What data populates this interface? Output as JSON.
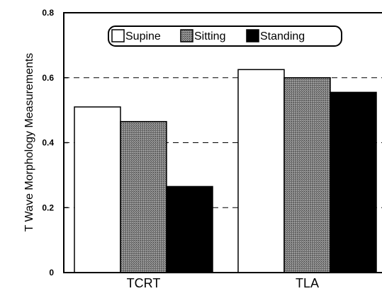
{
  "chart_data": {
    "type": "bar",
    "title": "",
    "xlabel": "",
    "ylabel": "T Wave Morphology Measurements",
    "categories": [
      "TCRT",
      "TLA"
    ],
    "ylim": [
      0,
      0.8
    ],
    "yticks": [
      "0",
      "0.2",
      "0.4",
      "0.6",
      "0.8"
    ],
    "grid": "dashed horizontal at 0.2, 0.4, 0.6",
    "legend_position": "top",
    "series": [
      {
        "name": "Supine",
        "values": [
          0.51,
          0.625
        ],
        "color": "#ffffff",
        "pattern": "none"
      },
      {
        "name": "Sitting",
        "values": [
          0.465,
          0.6
        ],
        "color": "#6e6e6e",
        "pattern": "stipple"
      },
      {
        "name": "Standing",
        "values": [
          0.265,
          0.555
        ],
        "color": "#000000",
        "pattern": "none"
      }
    ]
  }
}
